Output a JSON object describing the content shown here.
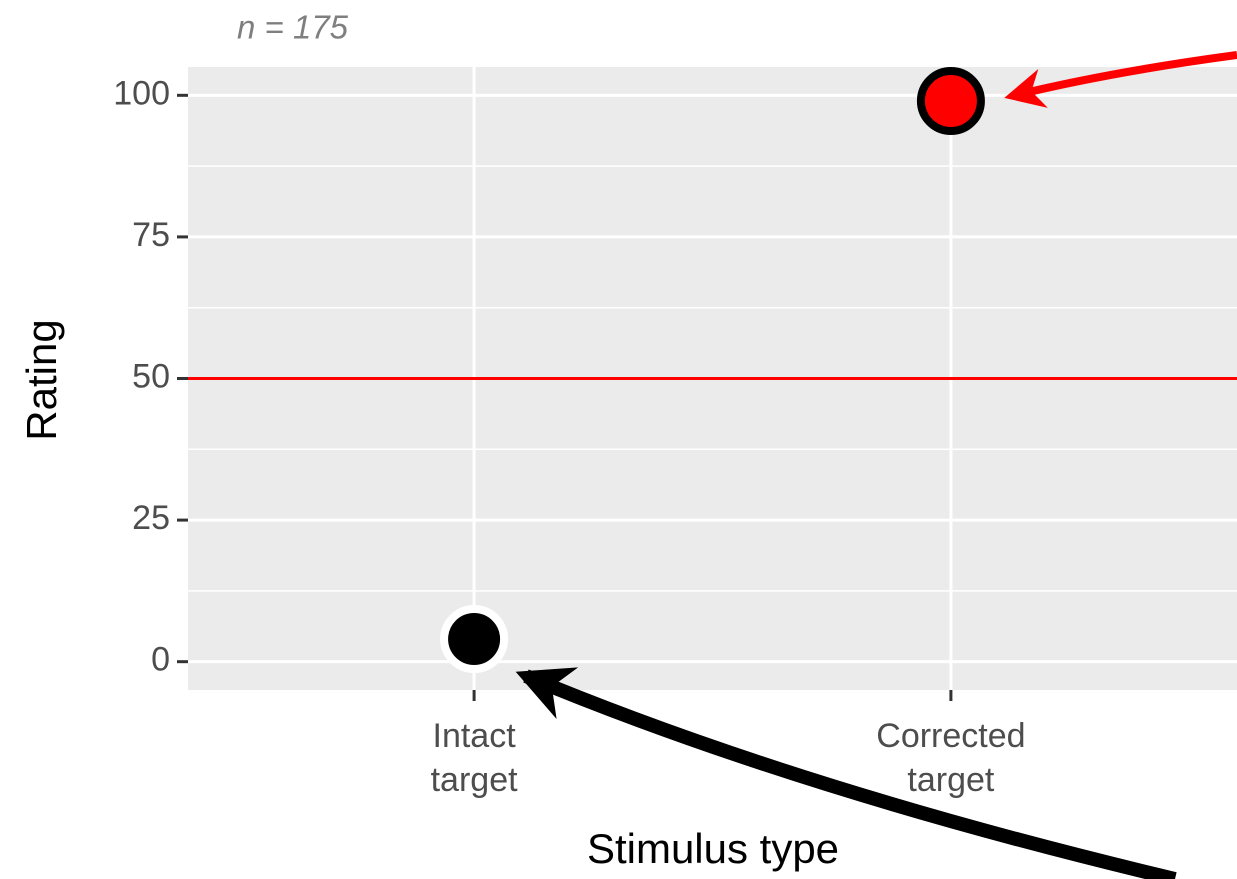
{
  "chart_data": {
    "type": "scatter",
    "subtitle": "n = 175",
    "x_label": "Stimulus type",
    "y_label": "Rating",
    "categories": [
      "Intact target",
      "Corrected target"
    ],
    "values": [
      4,
      99
    ],
    "point_fill": [
      "#000000",
      "#ff0000"
    ],
    "point_stroke": [
      "#ffffff",
      "#000000"
    ],
    "hline": 50,
    "hline_color": "#ff0000",
    "ylim": [
      -5,
      105
    ],
    "yticks": [
      0,
      25,
      50,
      75,
      100
    ],
    "grid": true
  }
}
